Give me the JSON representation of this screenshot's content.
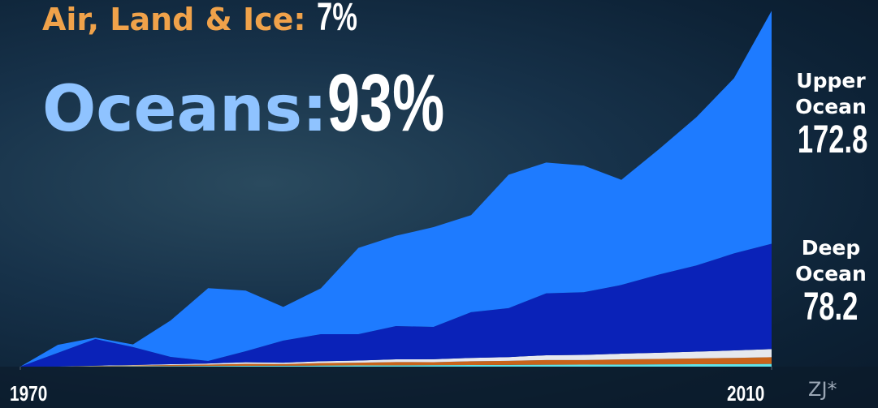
{
  "chart_data": {
    "type": "stacked_area",
    "annotations": [
      {
        "text": "Air, Land & Ice:",
        "value_label": "7%"
      },
      {
        "text": "Oceans:",
        "value_label": "93%"
      }
    ],
    "x": [
      1970,
      1972,
      1974,
      1976,
      1978,
      1980,
      1982,
      1984,
      1986,
      1988,
      1990,
      1992,
      1994,
      1996,
      1998,
      2000,
      2002,
      2004,
      2006,
      2008,
      2010
    ],
    "xlim": [
      1970,
      2010
    ],
    "xticks": [
      1970,
      2010
    ],
    "ylim": [
      0,
      266
    ],
    "series": [
      {
        "color": "#5fe3ea",
        "values": [
          0,
          0.1,
          0.2,
          0.3,
          0.4,
          0.5,
          0.6,
          0.7,
          0.8,
          0.9,
          1.0,
          1.1,
          1.2,
          1.3,
          1.4,
          1.5,
          1.6,
          1.7,
          1.8,
          1.9,
          2.0
        ]
      },
      {
        "color": "#c8631a",
        "values": [
          0,
          0,
          0.3,
          0.5,
          0.8,
          1.0,
          1.4,
          1.2,
          1.8,
          2.0,
          2.4,
          2.2,
          2.8,
          3.0,
          3.5,
          3.4,
          3.8,
          4.0,
          4.3,
          4.6,
          5.0
        ]
      },
      {
        "color": "#e6e8ee",
        "values": [
          0,
          0,
          0.2,
          0.4,
          0.6,
          0.8,
          1.2,
          1.0,
          1.4,
          1.6,
          2.0,
          2.2,
          2.5,
          2.8,
          3.5,
          3.8,
          4.2,
          4.6,
          5.0,
          5.5,
          6.0
        ]
      },
      {
        "name": "Deep Ocean",
        "color": "#0a22b8",
        "values": [
          0,
          10.1,
          19.8,
          13.3,
          5.4,
          1.9,
          8.2,
          16.4,
          20.1,
          19.6,
          24.7,
          24.0,
          33.9,
          36.3,
          46.0,
          46.5,
          51.0,
          58.0,
          64.0,
          72.0,
          78.2
        ]
      },
      {
        "name": "Upper Ocean",
        "color": "#1e7bff",
        "values": [
          0,
          6,
          1,
          2,
          27,
          54,
          45,
          25,
          34,
          64,
          67,
          74,
          72,
          99,
          97,
          94,
          78,
          93,
          110,
          130,
          172.8
        ]
      }
    ],
    "credit": "ZJ*"
  }
}
